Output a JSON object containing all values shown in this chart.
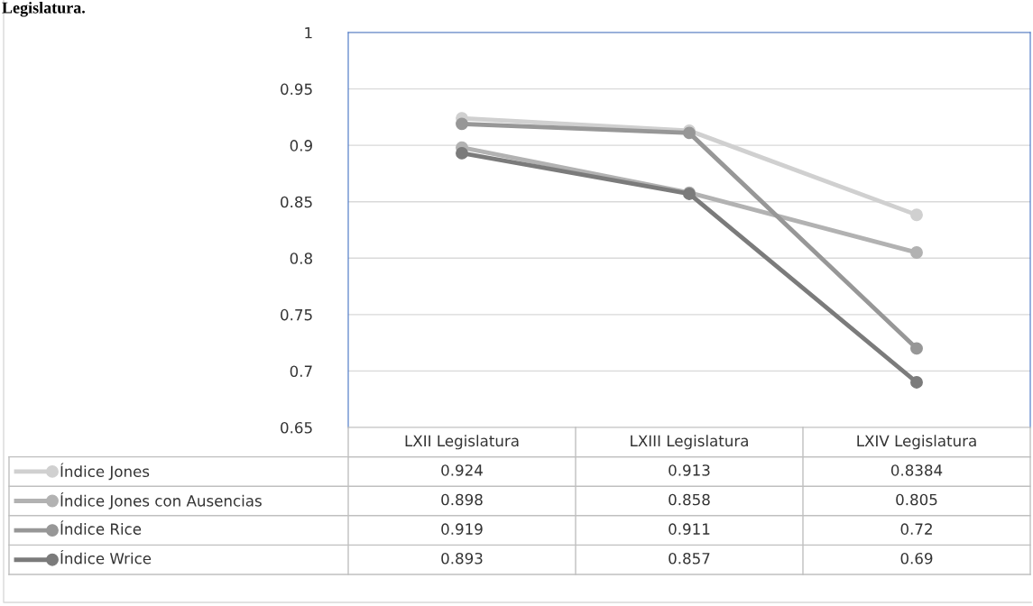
{
  "chart_data": {
    "type": "line",
    "categories": [
      "LXII Legislatura",
      "LXIII Legislatura",
      "LXIV Legislatura"
    ],
    "series": [
      {
        "name": "Índice Jones",
        "color": "#d0d0d0",
        "values": [
          0.924,
          0.913,
          0.8384
        ]
      },
      {
        "name": "Índice Jones con Ausencias",
        "color": "#b2b2b2",
        "values": [
          0.898,
          0.858,
          0.805
        ]
      },
      {
        "name": "Índice Rice",
        "color": "#979797",
        "values": [
          0.919,
          0.911,
          0.72
        ]
      },
      {
        "name": "Índice Wrice",
        "color": "#7b7b7b",
        "values": [
          0.893,
          0.857,
          0.69
        ]
      }
    ],
    "ylim": [
      0.65,
      1
    ],
    "yticks": [
      0.65,
      0.7,
      0.75,
      0.8,
      0.85,
      0.9,
      0.95,
      1
    ],
    "grid": "y",
    "legend": "bottom left",
    "marker": "circle",
    "line_style": "solid",
    "data_labels": true,
    "annotations": [
      "Legislatura."
    ]
  }
}
